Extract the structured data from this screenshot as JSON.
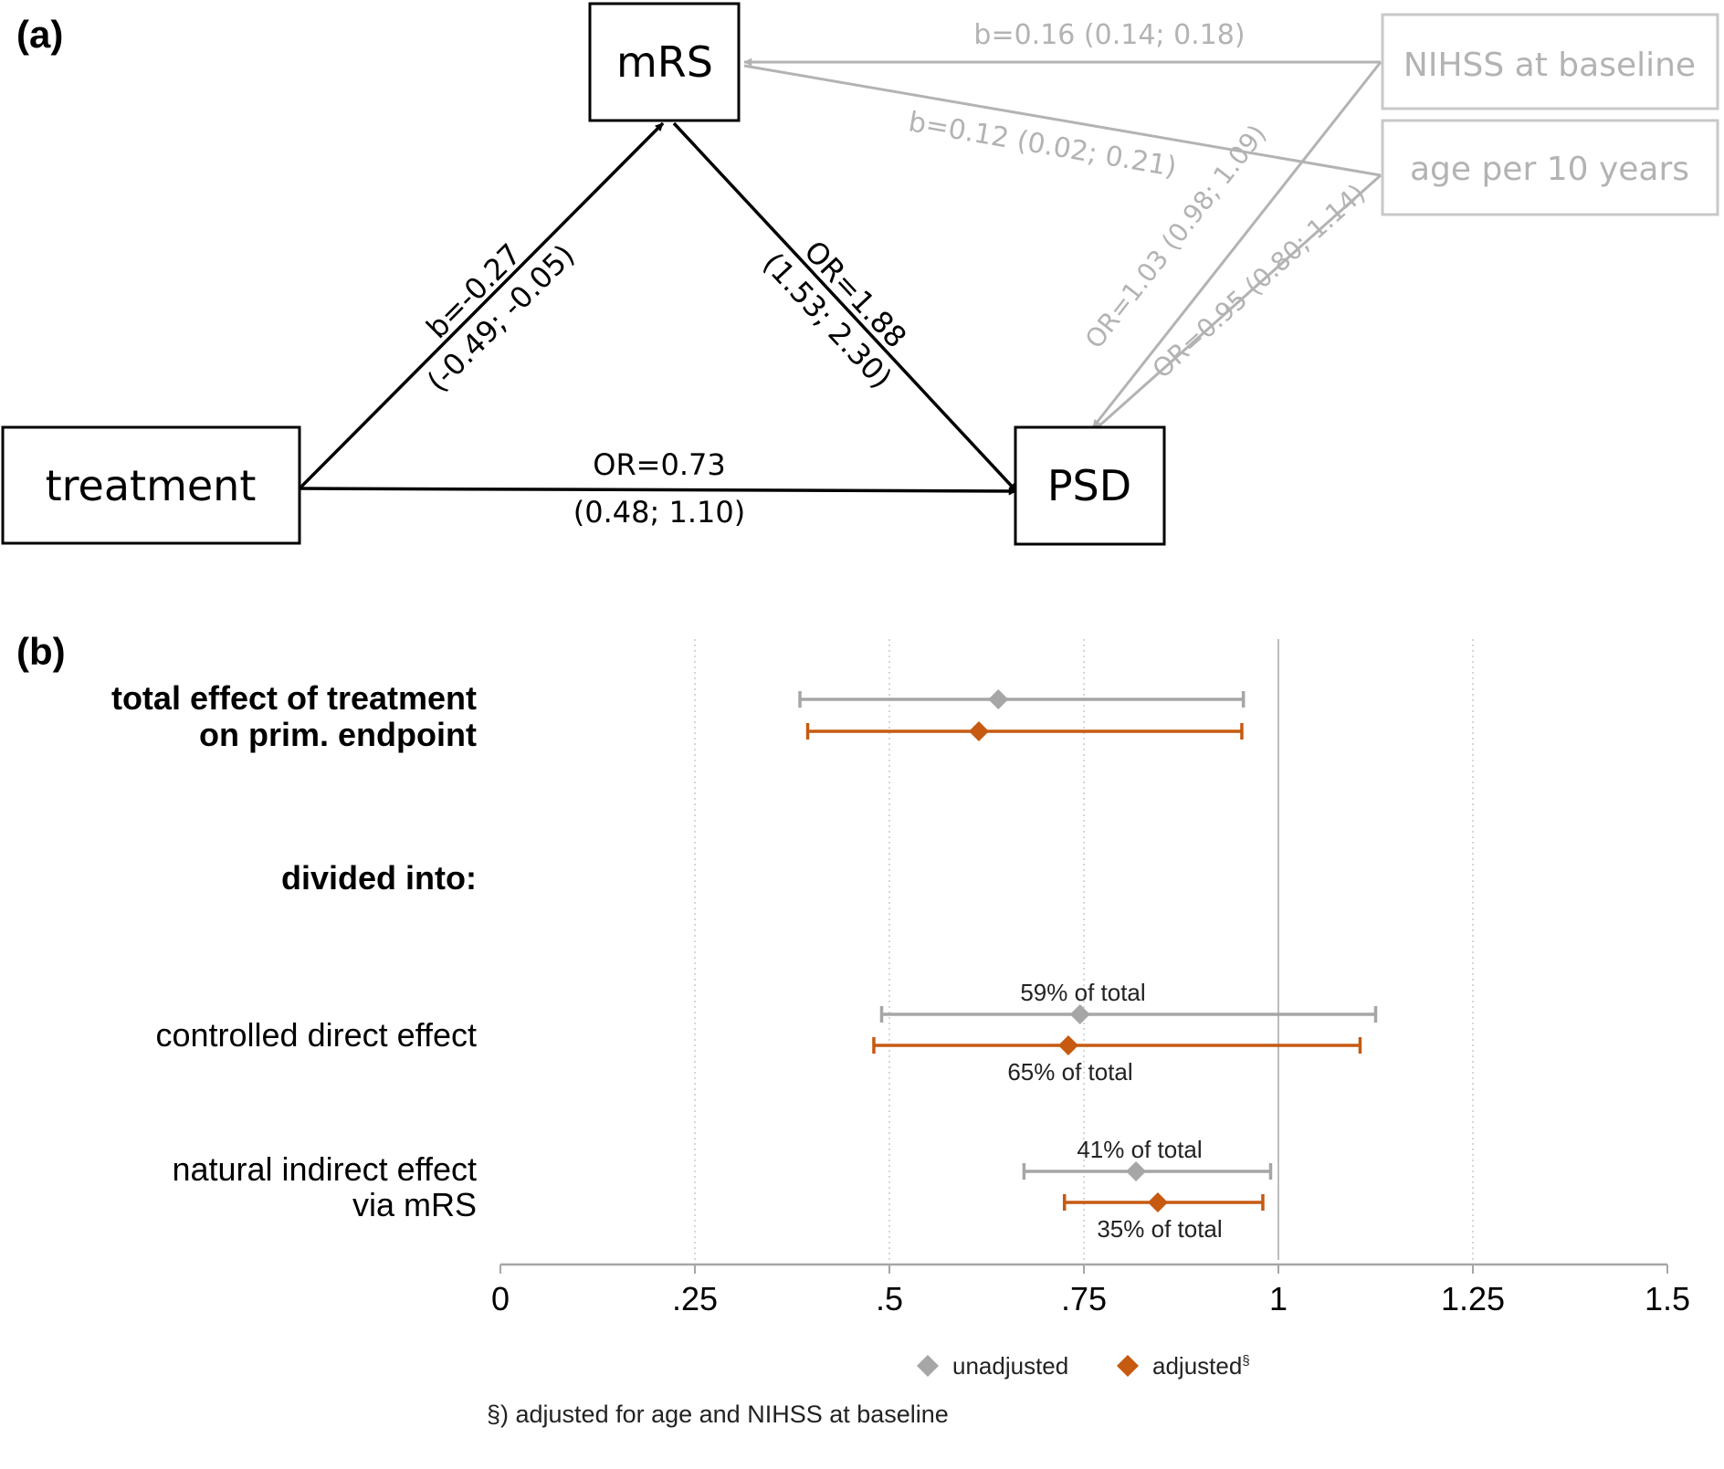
{
  "panel_a": {
    "label": "(a)",
    "nodes": {
      "mrs": "mRS",
      "treatment": "treatment",
      "psd": "PSD",
      "nihss": "NIHSS at baseline",
      "age": "age per 10 years"
    },
    "edges": {
      "treatment_mrs": {
        "line1": "b=-0.27",
        "line2": "(-0.49; -0.05)"
      },
      "mrs_psd": {
        "line1": "OR=1.88",
        "line2": "(1.53; 2.30)"
      },
      "treatment_psd": {
        "line1": "OR=0.73",
        "line2": "(0.48; 1.10)"
      },
      "nihss_mrs": "b=0.16 (0.14; 0.18)",
      "age_mrs": "b=0.12 (0.02; 0.21)",
      "nihss_psd": "OR=1.03 (0.98; 1.09)",
      "age_psd": "OR=0.95 (0.80; 1.14)"
    },
    "colors": {
      "main": "#000000",
      "covariate": "#b3b3b3"
    }
  },
  "panel_b": {
    "label": "(b)",
    "rows": {
      "total_line1": "total effect of treatment",
      "total_line2": "on prim. endpoint",
      "divided": "divided into:",
      "direct": "controlled direct effect",
      "indirect_line1": "natural indirect effect",
      "indirect_line2": "via mRS"
    },
    "annotations": {
      "direct_unadj": "59% of total",
      "direct_adj": "65% of total",
      "indirect_unadj": "41% of total",
      "indirect_adj": "35% of total"
    },
    "legend": {
      "unadjusted": "unadjusted",
      "adjusted": "adjusted",
      "adjusted_mark": "§"
    },
    "footnote": "§) adjusted for age and NIHSS at baseline"
  },
  "chart_data": {
    "type": "scatter",
    "subtype": "forest plot (point estimate with confidence interval)",
    "x_ticks": [
      "0",
      ".25",
      ".5",
      ".75",
      "1",
      "1.25",
      "1.5"
    ],
    "x_tick_values": [
      0,
      0.25,
      0.5,
      0.75,
      1,
      1.25,
      1.5
    ],
    "xlim": [
      0,
      1.5
    ],
    "reference_line": 1,
    "grid": "vertical dotted",
    "legend_position": "bottom",
    "series": [
      {
        "name": "unadjusted",
        "color": "#a6a6a6",
        "points": [
          {
            "row": "total",
            "est": 0.64,
            "lo": 0.385,
            "hi": 0.955
          },
          {
            "row": "direct",
            "est": 0.745,
            "lo": 0.49,
            "hi": 1.125
          },
          {
            "row": "indirect",
            "est": 0.817,
            "lo": 0.673,
            "hi": 0.99
          }
        ]
      },
      {
        "name": "adjusted",
        "color": "#c65a11",
        "points": [
          {
            "row": "total",
            "est": 0.615,
            "lo": 0.395,
            "hi": 0.953
          },
          {
            "row": "direct",
            "est": 0.73,
            "lo": 0.48,
            "hi": 1.105
          },
          {
            "row": "indirect",
            "est": 0.845,
            "lo": 0.725,
            "hi": 0.98
          }
        ]
      }
    ]
  }
}
